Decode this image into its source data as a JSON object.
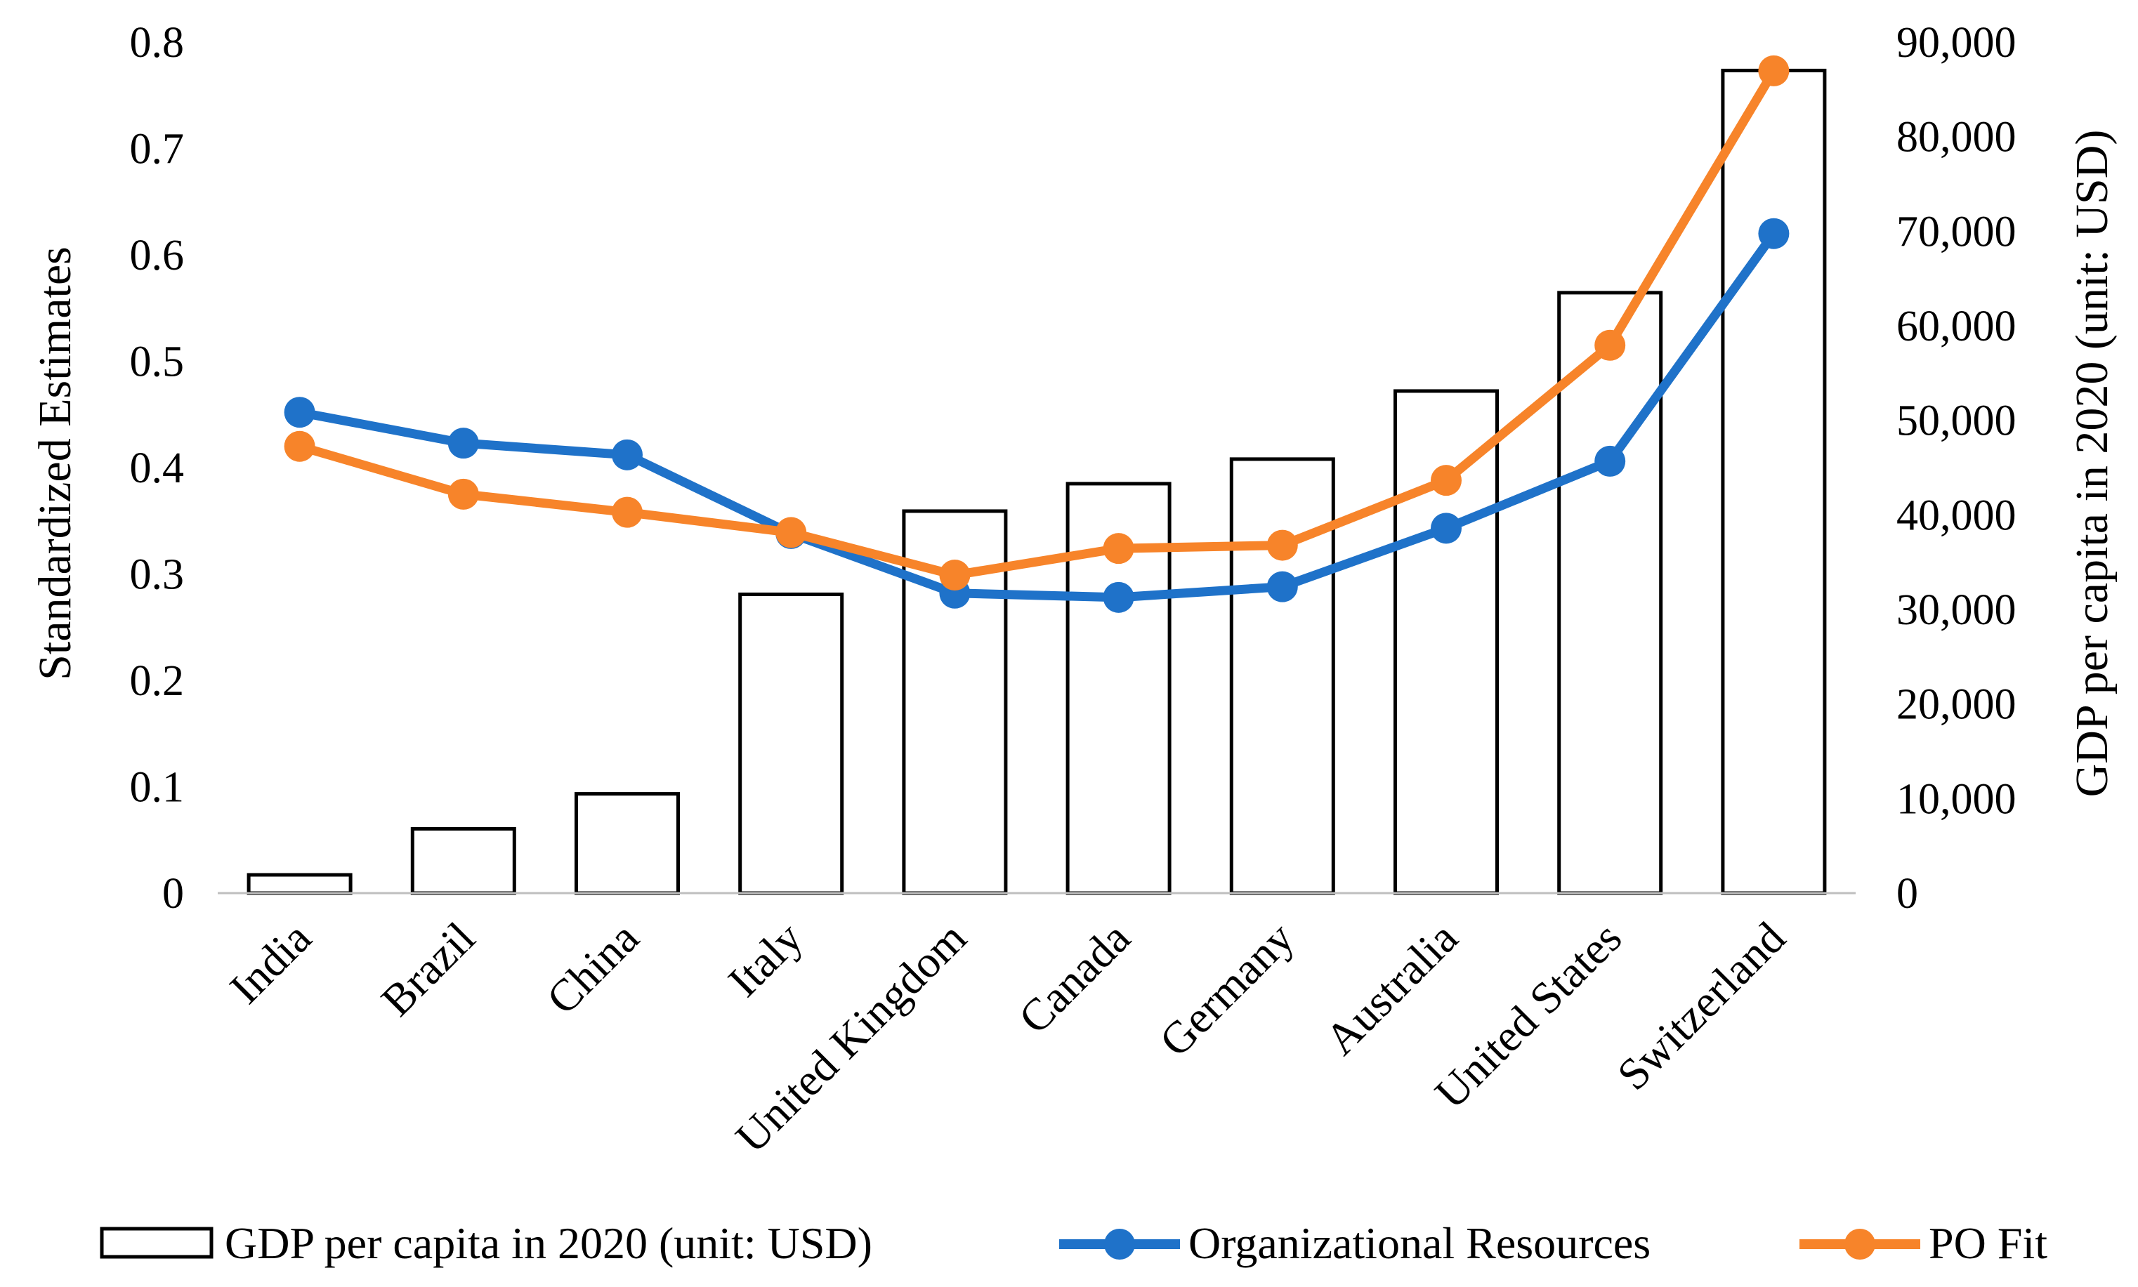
{
  "chart_data": {
    "type": "bar",
    "title": "",
    "categories": [
      "India",
      "Brazil",
      "China",
      "Italy",
      "United Kingdom",
      "Canada",
      "Germany",
      "Australia",
      "United States",
      "Switzerland"
    ],
    "bars": {
      "name": "GDP per capita in 2020 (unit: USD)",
      "axis": "right",
      "values": [
        1930,
        6800,
        10500,
        31600,
        40400,
        43300,
        45900,
        53100,
        63500,
        87000
      ]
    },
    "series": [
      {
        "name": "Organizational Resources",
        "type": "line",
        "axis": "left",
        "color": "#1f72c9",
        "values": [
          0.452,
          0.423,
          0.412,
          0.338,
          0.282,
          0.278,
          0.288,
          0.343,
          0.406,
          0.62
        ]
      },
      {
        "name": "PO Fit",
        "type": "line",
        "axis": "left",
        "color": "#f7842a",
        "values": [
          0.42,
          0.375,
          0.358,
          0.339,
          0.299,
          0.324,
          0.327,
          0.388,
          0.515,
          0.773
        ]
      }
    ],
    "left_axis": {
      "label": "Standardized Estimates",
      "ylim": [
        0,
        0.8
      ],
      "ticks": [
        "0",
        "0.1",
        "0.2",
        "0.3",
        "0.4",
        "0.5",
        "0.6",
        "0.7",
        "0.8"
      ]
    },
    "right_axis": {
      "label": "GDP per capita in 2020 (unit: USD)",
      "ylim": [
        0,
        90000
      ],
      "ticks": [
        "0",
        "10,000",
        "20,000",
        "30,000",
        "40,000",
        "50,000",
        "60,000",
        "70,000",
        "80,000",
        "90,000"
      ]
    },
    "legend": {
      "position": "bottom",
      "items": [
        "GDP per capita in 2020 (unit: USD)",
        "Organizational Resources",
        "PO Fit"
      ]
    },
    "grid": false
  }
}
